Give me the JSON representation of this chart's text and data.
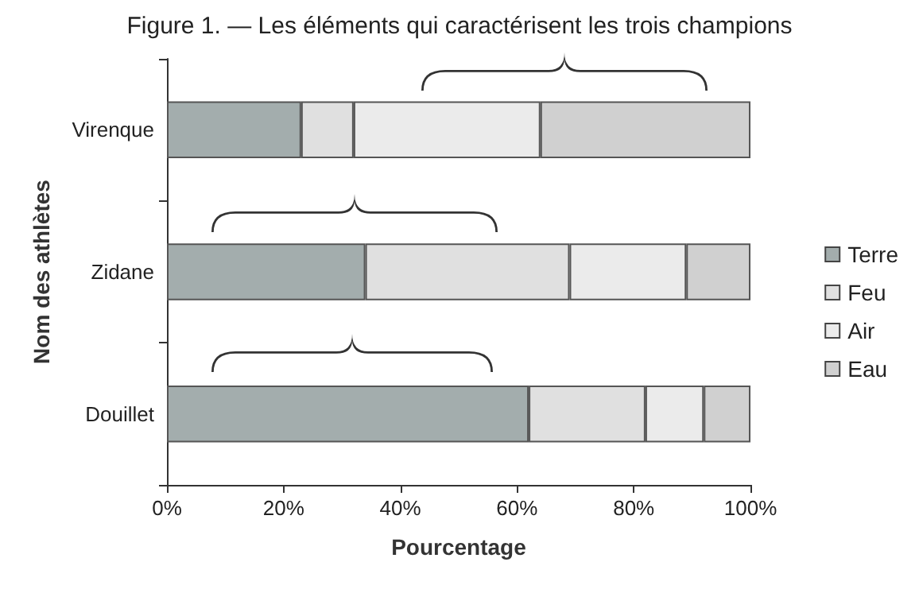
{
  "chart_data": {
    "type": "bar",
    "orientation": "horizontal",
    "stacked": true,
    "title": "Figure 1. — Les éléments qui caractérisent les trois champions",
    "xlabel": "Pourcentage",
    "ylabel": "Nom des athlètes",
    "categories": [
      "Virenque",
      "Zidane",
      "Douillet"
    ],
    "series": [
      {
        "name": "Terre",
        "color": "#a3adad",
        "values": [
          23,
          34,
          62
        ]
      },
      {
        "name": "Feu",
        "color": "#e0e0e0",
        "values": [
          9,
          35,
          20
        ]
      },
      {
        "name": "Air",
        "color": "#ebebeb",
        "values": [
          32,
          20,
          10
        ]
      },
      {
        "name": "Eau",
        "color": "#d0d0d0",
        "values": [
          36,
          11,
          8
        ]
      }
    ],
    "xlim": [
      0,
      100
    ],
    "xticks": [
      {
        "value": 0,
        "label": "0%"
      },
      {
        "value": 20,
        "label": "20%"
      },
      {
        "value": 40,
        "label": "40%"
      },
      {
        "value": 60,
        "label": "60%"
      },
      {
        "value": 80,
        "label": "80%"
      },
      {
        "value": 100,
        "label": "100%"
      }
    ],
    "grid": false,
    "legend": "right"
  }
}
